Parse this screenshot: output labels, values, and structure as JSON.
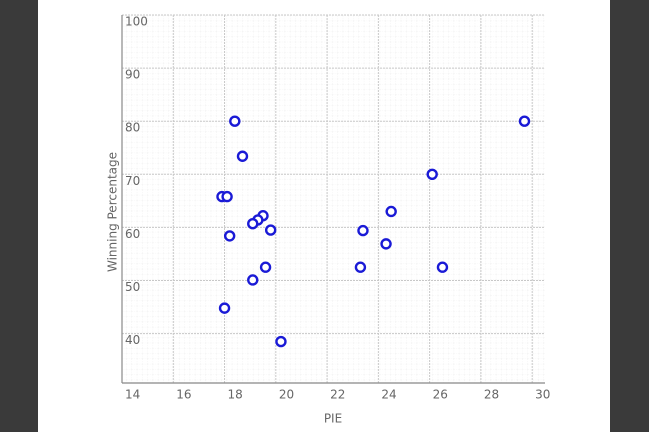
{
  "chart_data": {
    "type": "scatter",
    "x_label": "PIE",
    "y_label": "Winning Percentage",
    "xlim": [
      14,
      30.5
    ],
    "ylim": [
      30.7,
      100
    ],
    "xticks": [
      14,
      16,
      18,
      20,
      22,
      24,
      26,
      28,
      30
    ],
    "yticks": [
      40,
      50,
      60,
      70,
      80,
      90,
      100
    ],
    "grid": true,
    "color": "#1a1ad6",
    "x": [
      18.4,
      29.7,
      18.7,
      26.1,
      17.9,
      18.1,
      24.5,
      19.5,
      19.3,
      19.1,
      19.8,
      23.4,
      18.2,
      24.3,
      19.6,
      23.3,
      26.5,
      19.1,
      18.0,
      20.2
    ],
    "y": [
      80,
      80,
      73.4,
      70,
      65.8,
      65.8,
      63,
      62.2,
      61.4,
      60.7,
      59.5,
      59.4,
      58.4,
      56.9,
      52.5,
      52.5,
      52.5,
      50.1,
      44.8,
      38.5
    ]
  }
}
